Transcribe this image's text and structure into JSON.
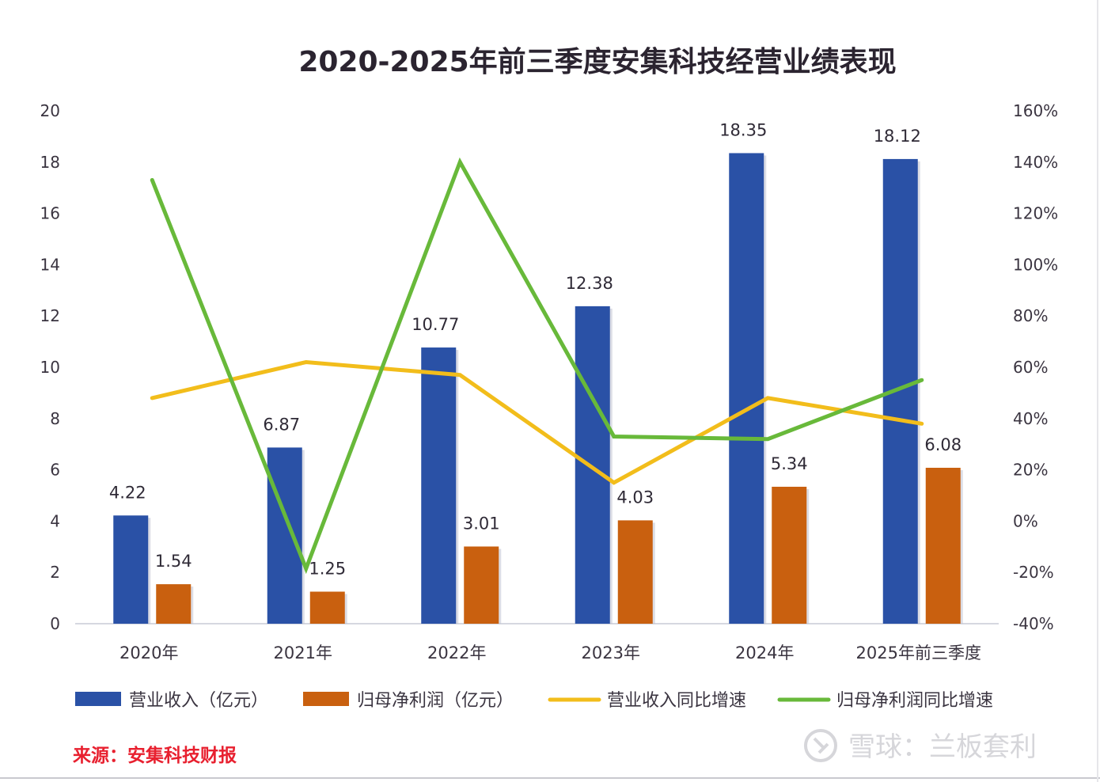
{
  "chart_data": {
    "type": "bar",
    "title": "2020-2025年前三季度安集科技经营业绩表现",
    "categories": [
      "2020年",
      "2021年",
      "2022年",
      "2023年",
      "2024年",
      "2025年前三季度"
    ],
    "y_left": {
      "ylim": [
        0,
        20
      ],
      "ticks": [
        "0",
        "2",
        "4",
        "6",
        "8",
        "10",
        "12",
        "14",
        "16",
        "18",
        "20"
      ],
      "tick_values": [
        0,
        2,
        4,
        6,
        8,
        10,
        12,
        14,
        16,
        18,
        20
      ]
    },
    "y_right": {
      "ylim": [
        -40,
        160
      ],
      "ticks": [
        "-40%",
        "-20%",
        "0%",
        "20%",
        "40%",
        "60%",
        "80%",
        "100%",
        "120%",
        "140%",
        "160%"
      ],
      "tick_values": [
        -40,
        -20,
        0,
        20,
        40,
        60,
        80,
        100,
        120,
        140,
        160
      ]
    },
    "series": [
      {
        "name": "营业收入（亿元）",
        "kind": "bar",
        "axis": "left",
        "color": "#2a51a6",
        "values": [
          4.22,
          6.87,
          10.77,
          12.38,
          18.35,
          18.12
        ],
        "labels": [
          "4.22",
          "6.87",
          "10.77",
          "12.38",
          "18.35",
          "18.12"
        ]
      },
      {
        "name": "归母净利润（亿元）",
        "kind": "bar",
        "axis": "left",
        "color": "#c9600f",
        "values": [
          1.54,
          1.25,
          3.01,
          4.03,
          5.34,
          6.08
        ],
        "labels": [
          "1.54",
          "1.25",
          "3.01",
          "4.03",
          "5.34",
          "6.08"
        ]
      },
      {
        "name": "营业收入同比增速",
        "kind": "line",
        "axis": "right",
        "color": "#f2bd1b",
        "values": [
          48,
          62,
          57,
          15,
          48,
          38
        ]
      },
      {
        "name": "归母净利润同比增速",
        "kind": "line",
        "axis": "right",
        "color": "#68b93a",
        "values": [
          133,
          -18.5,
          140,
          33,
          32,
          55
        ]
      }
    ],
    "xlabel": "",
    "ylabel": "",
    "grid": false,
    "legend_position": "bottom"
  },
  "footer": {
    "source": "来源：安集科技财报",
    "watermark": "雪球：兰板套利"
  }
}
